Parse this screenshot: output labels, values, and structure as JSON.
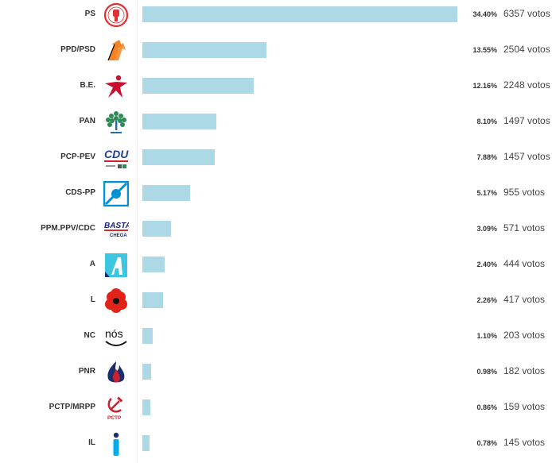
{
  "chart_data": {
    "type": "bar",
    "orientation": "horizontal",
    "xlim": [
      0,
      34.4
    ],
    "grid": false,
    "legend": "none",
    "bar_color": "#add8e6",
    "votes_suffix": "votos",
    "rows": [
      {
        "party": "PS",
        "percent_label": "34.40%",
        "value": 34.4,
        "votes": "6357",
        "logo_icon": "ps-fist-rose-logo-icon",
        "logo_colors": [
          "#e03030"
        ]
      },
      {
        "party": "PPD/PSD",
        "percent_label": "13.55%",
        "value": 13.55,
        "votes": "2504",
        "logo_icon": "psd-arrows-logo-icon",
        "logo_colors": [
          "#f58220",
          "#000000"
        ]
      },
      {
        "party": "B.E.",
        "percent_label": "12.16%",
        "value": 12.16,
        "votes": "2248",
        "logo_icon": "be-star-person-logo-icon",
        "logo_colors": [
          "#c8102e"
        ]
      },
      {
        "party": "PAN",
        "percent_label": "8.10%",
        "value": 8.1,
        "votes": "1497",
        "logo_icon": "pan-tree-logo-icon",
        "logo_colors": [
          "#2e8b57",
          "#1e6fa8"
        ]
      },
      {
        "party": "PCP-PEV",
        "percent_label": "7.88%",
        "value": 7.88,
        "votes": "1457",
        "logo_icon": "cdu-logo-icon",
        "logo_colors": [
          "#1f3f99"
        ],
        "logo_text": "CDU"
      },
      {
        "party": "CDS-PP",
        "percent_label": "5.17%",
        "value": 5.17,
        "votes": "955",
        "logo_icon": "cds-square-arrow-logo-icon",
        "logo_colors": [
          "#0091d5"
        ]
      },
      {
        "party": "PPM.PPV/CDC",
        "percent_label": "3.09%",
        "value": 3.09,
        "votes": "571",
        "logo_icon": "basta-chega-logo-icon",
        "logo_colors": [
          "#1a237e",
          "#d32f2f"
        ],
        "logo_text": "BASTA",
        "logo_subtext": "CHEGA"
      },
      {
        "party": "A",
        "percent_label": "2.40%",
        "value": 2.4,
        "votes": "444",
        "logo_icon": "aliança-logo-icon",
        "logo_colors": [
          "#3ec6e0"
        ]
      },
      {
        "party": "L",
        "percent_label": "2.26%",
        "value": 2.26,
        "votes": "417",
        "logo_icon": "livre-poppy-logo-icon",
        "logo_colors": [
          "#e2231a",
          "#111111"
        ]
      },
      {
        "party": "NC",
        "percent_label": "1.10%",
        "value": 1.1,
        "votes": "203",
        "logo_icon": "nos-cidadaos-logo-icon",
        "logo_colors": [
          "#111111"
        ],
        "logo_text": "nós"
      },
      {
        "party": "PNR",
        "percent_label": "0.98%",
        "value": 0.98,
        "votes": "182",
        "logo_icon": "pnr-flame-logo-icon",
        "logo_colors": [
          "#1a2f6e",
          "#d0202e"
        ]
      },
      {
        "party": "PCTP/MRPP",
        "percent_label": "0.86%",
        "value": 0.86,
        "votes": "159",
        "logo_icon": "pctp-hammer-sickle-logo-icon",
        "logo_colors": [
          "#d0202e"
        ],
        "logo_text": "PCTP"
      },
      {
        "party": "IL",
        "percent_label": "0.78%",
        "value": 0.78,
        "votes": "145",
        "logo_icon": "il-info-logo-icon",
        "logo_colors": [
          "#00aeef",
          "#1a2f6e"
        ]
      }
    ]
  }
}
